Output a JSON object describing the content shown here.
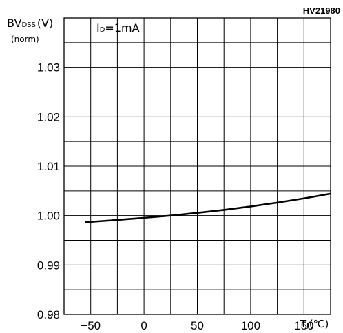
{
  "figure_id": "HV21980",
  "chart_data": {
    "type": "line",
    "annotation": "I_D=1mA",
    "ylabel": {
      "prefix": "BV",
      "subscript": "DSS",
      "unit": "(V)",
      "qualifier": "(norm)"
    },
    "xlabel": {
      "prefix": "T",
      "subscript": "J",
      "unit": "(℃)"
    },
    "xlim": [
      -75,
      175
    ],
    "ylim": [
      0.98,
      1.04
    ],
    "x_ticks": [
      -50,
      0,
      50,
      100,
      150
    ],
    "x_tick_labels": [
      "−50",
      "0",
      "50",
      "100",
      "150"
    ],
    "y_ticks": [
      0.98,
      0.99,
      1.0,
      1.01,
      1.02,
      1.03
    ],
    "y_tick_labels": [
      "0.98",
      "0.99",
      "1.00",
      "1.01",
      "1.02",
      "1.03"
    ],
    "x_grid_step": 25,
    "y_grid_step": 0.005,
    "grid": true,
    "series": [
      {
        "x": [
          -55,
          -25,
          0,
          25,
          50,
          75,
          100,
          125,
          150,
          175
        ],
        "y": [
          0.99866,
          0.99912,
          0.99955,
          1.0,
          1.00055,
          1.00115,
          1.00185,
          1.00262,
          1.00348,
          1.00444
        ]
      }
    ]
  }
}
